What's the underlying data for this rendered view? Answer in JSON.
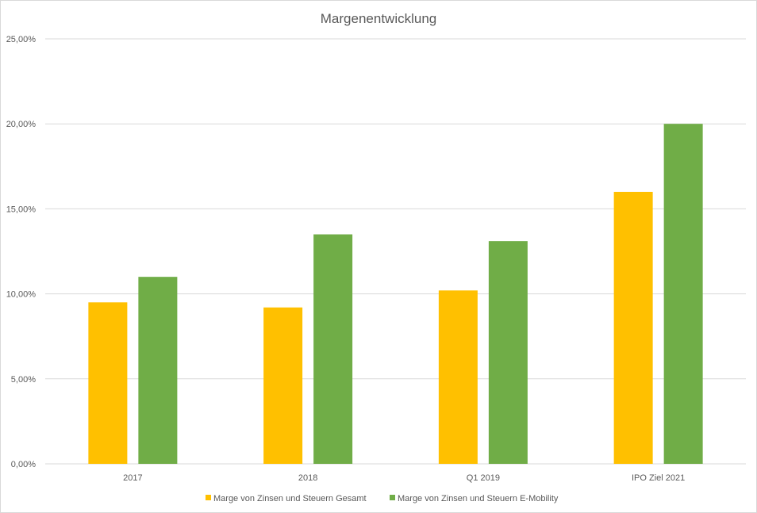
{
  "chart_data": {
    "type": "bar",
    "title": "Margenentwicklung",
    "categories": [
      "2017",
      "2018",
      "Q1 2019",
      "IPO Ziel 2021"
    ],
    "series": [
      {
        "name": "Marge von Zinsen und Steuern Gesamt",
        "color": "#FFC000",
        "values": [
          9.5,
          9.2,
          10.2,
          16.0
        ]
      },
      {
        "name": "Marge von Zinsen und Steuern E-Mobility",
        "color": "#70AD47",
        "values": [
          11.0,
          13.5,
          13.1,
          20.0
        ]
      }
    ],
    "ylim": [
      0,
      25
    ],
    "yticks": [
      "0,00%",
      "5,00%",
      "10,00%",
      "15,00%",
      "20,00%",
      "25,00%"
    ],
    "ytick_values": [
      0,
      5,
      10,
      15,
      20,
      25
    ],
    "grid": true,
    "legend": "bottom"
  }
}
